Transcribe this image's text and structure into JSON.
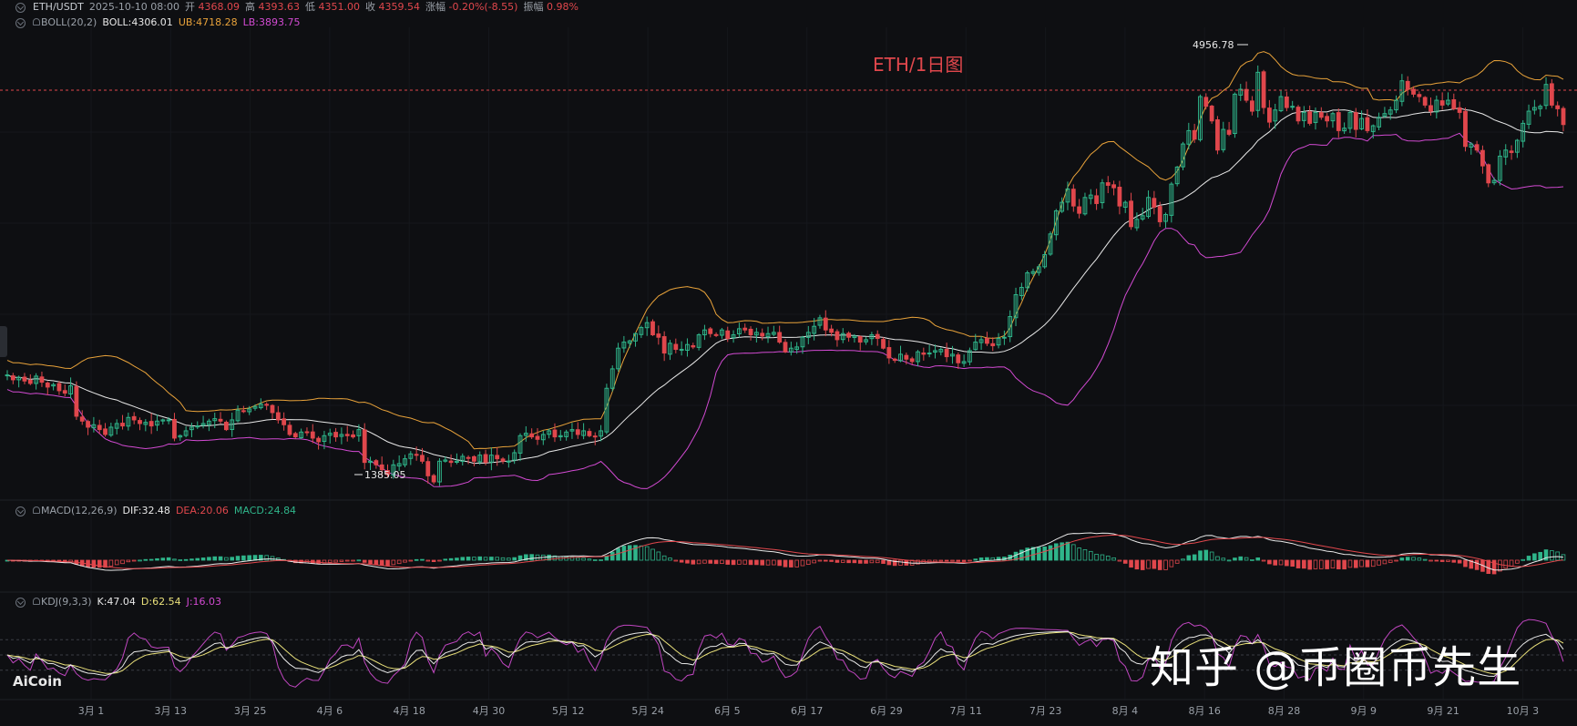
{
  "title_overlay": "ETH/1日图",
  "watermark": {
    "logo": "AiCoin",
    "text": "知乎 @币圈币先生"
  },
  "header": {
    "symbol": "ETH/USDT",
    "datetime": "2025-10-10 08:00",
    "open_label": "开",
    "open": "4368.09",
    "high_label": "高",
    "high": "4393.63",
    "low_label": "低",
    "low": "4351.00",
    "close_label": "收",
    "close": "4359.54",
    "change_label": "涨幅",
    "change": "-0.20%(-8.55)",
    "amp_label": "振幅",
    "amp": "0.98%"
  },
  "boll": {
    "name": "BOLL(20,2)",
    "boll": "BOLL:4306.01",
    "ub": "UB:4718.28",
    "lb": "LB:3893.75"
  },
  "macd": {
    "name": "MACD(12,26,9)",
    "dif": "DIF:32.48",
    "dea": "DEA:20.06",
    "macd": "MACD:24.84"
  },
  "kdj": {
    "name": "KDJ(9,3,3)",
    "k": "K:47.04",
    "d": "D:62.54",
    "j": "J:16.03"
  },
  "colors": {
    "up": "#2fb58a",
    "down": "#e0474c",
    "mid": "#e8e8e8",
    "ub": "#e8a23a",
    "lb": "#d24ad2",
    "bg": "#0e0f12"
  },
  "chart_data": {
    "type": "candlestick",
    "title": "ETH/1日图",
    "x_ticks": [
      "3月 1",
      "3月 13",
      "3月 25",
      "4月 6",
      "4月 18",
      "4月 30",
      "5月 12",
      "5月 24",
      "6月 5",
      "6月 17",
      "6月 29",
      "7月 11",
      "7月 23",
      "8月 4",
      "8月 16",
      "8月 28",
      "9月 9",
      "9月 21",
      "10月 3"
    ],
    "annotations": {
      "max": "4956.78",
      "min": "1385.05"
    },
    "ylim": [
      1300,
      5100
    ],
    "close": [
      2300,
      2260,
      2280,
      2250,
      2230,
      2290,
      2240,
      2200,
      2220,
      2170,
      2150,
      2210,
      1960,
      1920,
      1870,
      1890,
      1850,
      1810,
      1870,
      1900,
      1880,
      1950,
      1930,
      1900,
      1910,
      1880,
      1920,
      1930,
      1930,
      1780,
      1800,
      1840,
      1870,
      1880,
      1900,
      1920,
      1940,
      1920,
      1850,
      1930,
      2010,
      2000,
      2020,
      2040,
      2060,
      2050,
      1990,
      1930,
      1890,
      1810,
      1790,
      1830,
      1830,
      1780,
      1750,
      1800,
      1820,
      1790,
      1810,
      1800,
      1790,
      1850,
      1580,
      1590,
      1560,
      1520,
      1480,
      1560,
      1570,
      1610,
      1650,
      1640,
      1590,
      1470,
      1420,
      1590,
      1600,
      1580,
      1590,
      1630,
      1620,
      1590,
      1640,
      1580,
      1640,
      1610,
      1590,
      1590,
      1660,
      1800,
      1820,
      1790,
      1770,
      1810,
      1840,
      1790,
      1800,
      1830,
      1850,
      1810,
      1840,
      1800,
      1790,
      1840,
      2190,
      2350,
      2520,
      2570,
      2580,
      2640,
      2690,
      2730,
      2630,
      2610,
      2480,
      2560,
      2510,
      2510,
      2550,
      2530,
      2630,
      2670,
      2640,
      2630,
      2670,
      2600,
      2630,
      2680,
      2670,
      2630,
      2650,
      2620,
      2640,
      2650,
      2570,
      2490,
      2520,
      2530,
      2610,
      2650,
      2700,
      2770,
      2670,
      2650,
      2590,
      2640,
      2610,
      2620,
      2570,
      2590,
      2630,
      2600,
      2520,
      2440,
      2420,
      2470,
      2430,
      2410,
      2490,
      2470,
      2480,
      2500,
      2510,
      2450,
      2470,
      2400,
      2410,
      2500,
      2570,
      2590,
      2560,
      2540,
      2600,
      2610,
      2780,
      2960,
      3020,
      3140,
      3150,
      3190,
      3290,
      3460,
      3650,
      3720,
      3830,
      3690,
      3630,
      3760,
      3780,
      3710,
      3880,
      3860,
      3840,
      3690,
      3720,
      3520,
      3580,
      3610,
      3760,
      3680,
      3560,
      3620,
      3870,
      4010,
      4200,
      4310,
      4240,
      4590,
      4510,
      4390,
      4150,
      4320,
      4280,
      4610,
      4650,
      4560,
      4470,
      4790,
      4500,
      4380,
      4480,
      4590,
      4500,
      4510,
      4390,
      4460,
      4370,
      4460,
      4420,
      4390,
      4450,
      4310,
      4330,
      4460,
      4320,
      4410,
      4310,
      4350,
      4420,
      4450,
      4480,
      4560,
      4720,
      4650,
      4610,
      4590,
      4520,
      4470,
      4560,
      4520,
      4560,
      4490,
      4460,
      4180,
      4200,
      4150,
      4020,
      3880,
      3900,
      4100,
      4150,
      4130,
      4230,
      4370,
      4470,
      4500,
      4510,
      4690,
      4520,
      4490,
      4360
    ]
  }
}
